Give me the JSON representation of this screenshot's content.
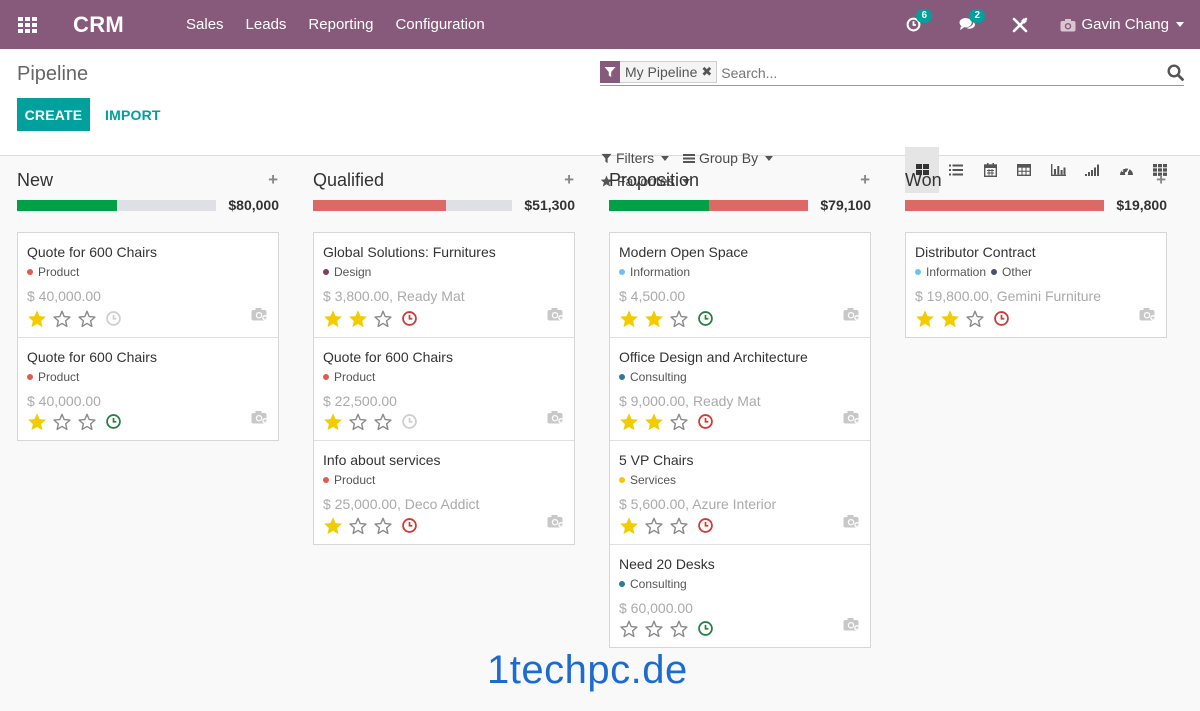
{
  "navbar": {
    "brand": "CRM",
    "menu": [
      "Sales",
      "Leads",
      "Reporting",
      "Configuration"
    ],
    "activity_count": "6",
    "message_count": "2",
    "user_name": "Gavin Chang",
    "bg_color": "#875a7b"
  },
  "control": {
    "title": "Pipeline",
    "create_label": "CREATE",
    "import_label": "IMPORT",
    "facet_label": "My Pipeline",
    "search_placeholder": "Search...",
    "filters_label": "Filters",
    "groupby_label": "Group By",
    "favorites_label": "Favorites",
    "views": [
      "kanban",
      "list",
      "calendar",
      "pivot",
      "graph",
      "cohort",
      "dashboard",
      "grid"
    ],
    "active_view": "kanban"
  },
  "colors": {
    "accent": "#00a09d",
    "green": "#00a046",
    "red": "#dc6965",
    "empty": "#dfe0e5",
    "star": "#f3cc00"
  },
  "columns": [
    {
      "title": "New",
      "total": "$80,000",
      "progress": [
        {
          "color": "green",
          "fraction": 0.5
        }
      ],
      "cards": [
        {
          "title": "Quote for 600 Chairs",
          "tags": [
            {
              "label": "Product",
              "color": "#e05c4f"
            }
          ],
          "amount": "$ 40,000.00",
          "stars": 1,
          "activity": "none"
        },
        {
          "title": "Quote for 600 Chairs",
          "tags": [
            {
              "label": "Product",
              "color": "#e05c4f"
            }
          ],
          "amount": "$ 40,000.00",
          "stars": 1,
          "activity": "planned"
        }
      ]
    },
    {
      "title": "Qualified",
      "total": "$51,300",
      "progress": [
        {
          "color": "red",
          "fraction": 0.67
        }
      ],
      "cards": [
        {
          "title": "Global Solutions: Furnitures",
          "tags": [
            {
              "label": "Design",
              "color": "#7a3f62"
            }
          ],
          "amount": "$ 3,800.00, Ready Mat",
          "stars": 2,
          "activity": "overdue"
        },
        {
          "title": "Quote for 600 Chairs",
          "tags": [
            {
              "label": "Product",
              "color": "#e05c4f"
            }
          ],
          "amount": "$ 22,500.00",
          "stars": 1,
          "activity": "none"
        },
        {
          "title": "Info about services",
          "tags": [
            {
              "label": "Product",
              "color": "#e05c4f"
            }
          ],
          "amount": "$ 25,000.00, Deco Addict",
          "stars": 1,
          "activity": "overdue"
        }
      ]
    },
    {
      "title": "Proposition",
      "total": "$79,100",
      "progress": [
        {
          "color": "green",
          "fraction": 0.5
        },
        {
          "color": "red",
          "fraction": 0.5
        }
      ],
      "cards": [
        {
          "title": "Modern Open Space",
          "tags": [
            {
              "label": "Information",
              "color": "#6cc1ed"
            }
          ],
          "amount": "$ 4,500.00",
          "stars": 2,
          "activity": "planned"
        },
        {
          "title": "Office Design and Architecture",
          "tags": [
            {
              "label": "Consulting",
              "color": "#30799b"
            }
          ],
          "amount": "$ 9,000.00, Ready Mat",
          "stars": 2,
          "activity": "overdue"
        },
        {
          "title": "5 VP Chairs",
          "tags": [
            {
              "label": "Services",
              "color": "#f4c609"
            }
          ],
          "amount": "$ 5,600.00, Azure Interior",
          "stars": 1,
          "activity": "overdue"
        },
        {
          "title": "Need 20 Desks",
          "tags": [
            {
              "label": "Consulting",
              "color": "#30799b"
            }
          ],
          "amount": "$ 60,000.00",
          "stars": 0,
          "activity": "planned"
        }
      ]
    },
    {
      "title": "Won",
      "total": "$19,800",
      "progress": [
        {
          "color": "red",
          "fraction": 1.0
        }
      ],
      "cards": [
        {
          "title": "Distributor Contract",
          "tags": [
            {
              "label": "Information",
              "color": "#6cc1ed"
            },
            {
              "label": "Other",
              "color": "#4a4f6b"
            }
          ],
          "amount": "$ 19,800.00, Gemini Furniture",
          "stars": 2,
          "activity": "overdue"
        }
      ]
    }
  ],
  "watermark": "1techpc.de"
}
